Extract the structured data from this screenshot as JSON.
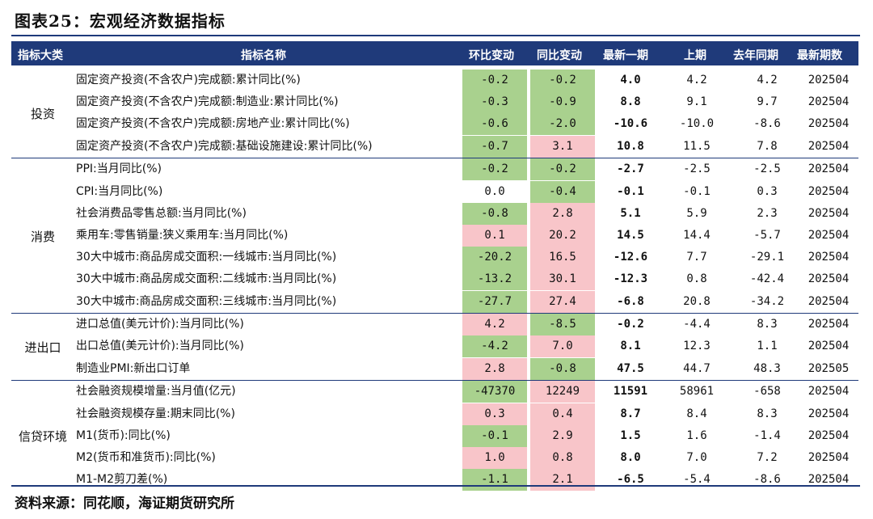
{
  "title": "图表25：宏观经济数据指标",
  "headers": {
    "category": "指标大类",
    "name": "指标名称",
    "hb": "环比变动",
    "tb": "同比变动",
    "latest": "最新一期",
    "prev": "上期",
    "yoy": "去年同期",
    "period": "最新期数"
  },
  "groups": [
    {
      "category": "投资",
      "rows": [
        {
          "name": "固定资产投资(不含农户)完成额:累计同比(%)",
          "hb": "-0.2",
          "tb": "-0.2",
          "latest": "4.0",
          "prev": "4.2",
          "yoy": "4.2",
          "period": "202504",
          "hb_color": "green",
          "tb_color": "green"
        },
        {
          "name": "固定资产投资(不含农户)完成额:制造业:累计同比(%)",
          "hb": "-0.3",
          "tb": "-0.9",
          "latest": "8.8",
          "prev": "9.1",
          "yoy": "9.7",
          "period": "202504",
          "hb_color": "green",
          "tb_color": "green"
        },
        {
          "name": "固定资产投资(不含农户)完成额:房地产业:累计同比(%)",
          "hb": "-0.6",
          "tb": "-2.0",
          "latest": "-10.6",
          "prev": "-10.0",
          "yoy": "-8.6",
          "period": "202504",
          "hb_color": "green",
          "tb_color": "green"
        },
        {
          "name": "固定资产投资(不含农户)完成额:基础设施建设:累计同比(%)",
          "hb": "-0.7",
          "tb": "3.1",
          "latest": "10.8",
          "prev": "11.5",
          "yoy": "7.8",
          "period": "202504",
          "hb_color": "green",
          "tb_color": "pink"
        }
      ]
    },
    {
      "category": "消费",
      "rows": [
        {
          "name": "PPI:当月同比(%)",
          "hb": "-0.2",
          "tb": "-0.2",
          "latest": "-2.7",
          "prev": "-2.5",
          "yoy": "-2.5",
          "period": "202504",
          "hb_color": "green",
          "tb_color": "green"
        },
        {
          "name": "CPI:当月同比(%)",
          "hb": "0.0",
          "tb": "-0.4",
          "latest": "-0.1",
          "prev": "-0.1",
          "yoy": "0.3",
          "period": "202504",
          "hb_color": "white",
          "tb_color": "green"
        },
        {
          "name": "社会消费品零售总额:当月同比(%)",
          "hb": "-0.8",
          "tb": "2.8",
          "latest": "5.1",
          "prev": "5.9",
          "yoy": "2.3",
          "period": "202504",
          "hb_color": "green",
          "tb_color": "pink"
        },
        {
          "name": "乘用车:零售销量:狭义乘用车:当月同比(%)",
          "hb": "0.1",
          "tb": "20.2",
          "latest": "14.5",
          "prev": "14.4",
          "yoy": "-5.7",
          "period": "202504",
          "hb_color": "pink",
          "tb_color": "pink"
        },
        {
          "name": "30大中城市:商品房成交面积:一线城市:当月同比(%)",
          "hb": "-20.2",
          "tb": "16.5",
          "latest": "-12.6",
          "prev": "7.7",
          "yoy": "-29.1",
          "period": "202504",
          "hb_color": "green",
          "tb_color": "pink"
        },
        {
          "name": "30大中城市:商品房成交面积:二线城市:当月同比(%)",
          "hb": "-13.2",
          "tb": "30.1",
          "latest": "-12.3",
          "prev": "0.8",
          "yoy": "-42.4",
          "period": "202504",
          "hb_color": "green",
          "tb_color": "pink"
        },
        {
          "name": "30大中城市:商品房成交面积:三线城市:当月同比(%)",
          "hb": "-27.7",
          "tb": "27.4",
          "latest": "-6.8",
          "prev": "20.8",
          "yoy": "-34.2",
          "period": "202504",
          "hb_color": "green",
          "tb_color": "pink"
        }
      ]
    },
    {
      "category": "进出口",
      "rows": [
        {
          "name": "进口总值(美元计价):当月同比(%)",
          "hb": "4.2",
          "tb": "-8.5",
          "latest": "-0.2",
          "prev": "-4.4",
          "yoy": "8.3",
          "period": "202504",
          "hb_color": "pink",
          "tb_color": "green"
        },
        {
          "name": "出口总值(美元计价):当月同比(%)",
          "hb": "-4.2",
          "tb": "7.0",
          "latest": "8.1",
          "prev": "12.3",
          "yoy": "1.1",
          "period": "202504",
          "hb_color": "green",
          "tb_color": "pink"
        },
        {
          "name": "制造业PMI:新出口订单",
          "hb": "2.8",
          "tb": "-0.8",
          "latest": "47.5",
          "prev": "44.7",
          "yoy": "48.3",
          "period": "202505",
          "hb_color": "pink",
          "tb_color": "green"
        }
      ]
    },
    {
      "category": "信贷环境",
      "rows": [
        {
          "name": "社会融资规模增量:当月值(亿元)",
          "hb": "-47370",
          "tb": "12249",
          "latest": "11591",
          "prev": "58961",
          "yoy": "-658",
          "period": "202504",
          "hb_color": "green",
          "tb_color": "pink"
        },
        {
          "name": "社会融资规模存量:期末同比(%)",
          "hb": "0.3",
          "tb": "0.4",
          "latest": "8.7",
          "prev": "8.4",
          "yoy": "8.3",
          "period": "202504",
          "hb_color": "pink",
          "tb_color": "pink"
        },
        {
          "name": "M1(货币):同比(%)",
          "hb": "-0.1",
          "tb": "2.9",
          "latest": "1.5",
          "prev": "1.6",
          "yoy": "-1.4",
          "period": "202504",
          "hb_color": "green",
          "tb_color": "pink"
        },
        {
          "name": "M2(货币和准货币):同比(%)",
          "hb": "1.0",
          "tb": "0.8",
          "latest": "8.0",
          "prev": "7.0",
          "yoy": "7.2",
          "period": "202504",
          "hb_color": "pink",
          "tb_color": "pink"
        },
        {
          "name": "M1-M2剪刀差(%)",
          "hb": "-1.1",
          "tb": "2.1",
          "latest": "-6.5",
          "prev": "-5.4",
          "yoy": "-8.6",
          "period": "202504",
          "hb_color": "green",
          "tb_color": "pink"
        }
      ]
    }
  ],
  "source": "资料来源：同花顺，海证期货研究所"
}
